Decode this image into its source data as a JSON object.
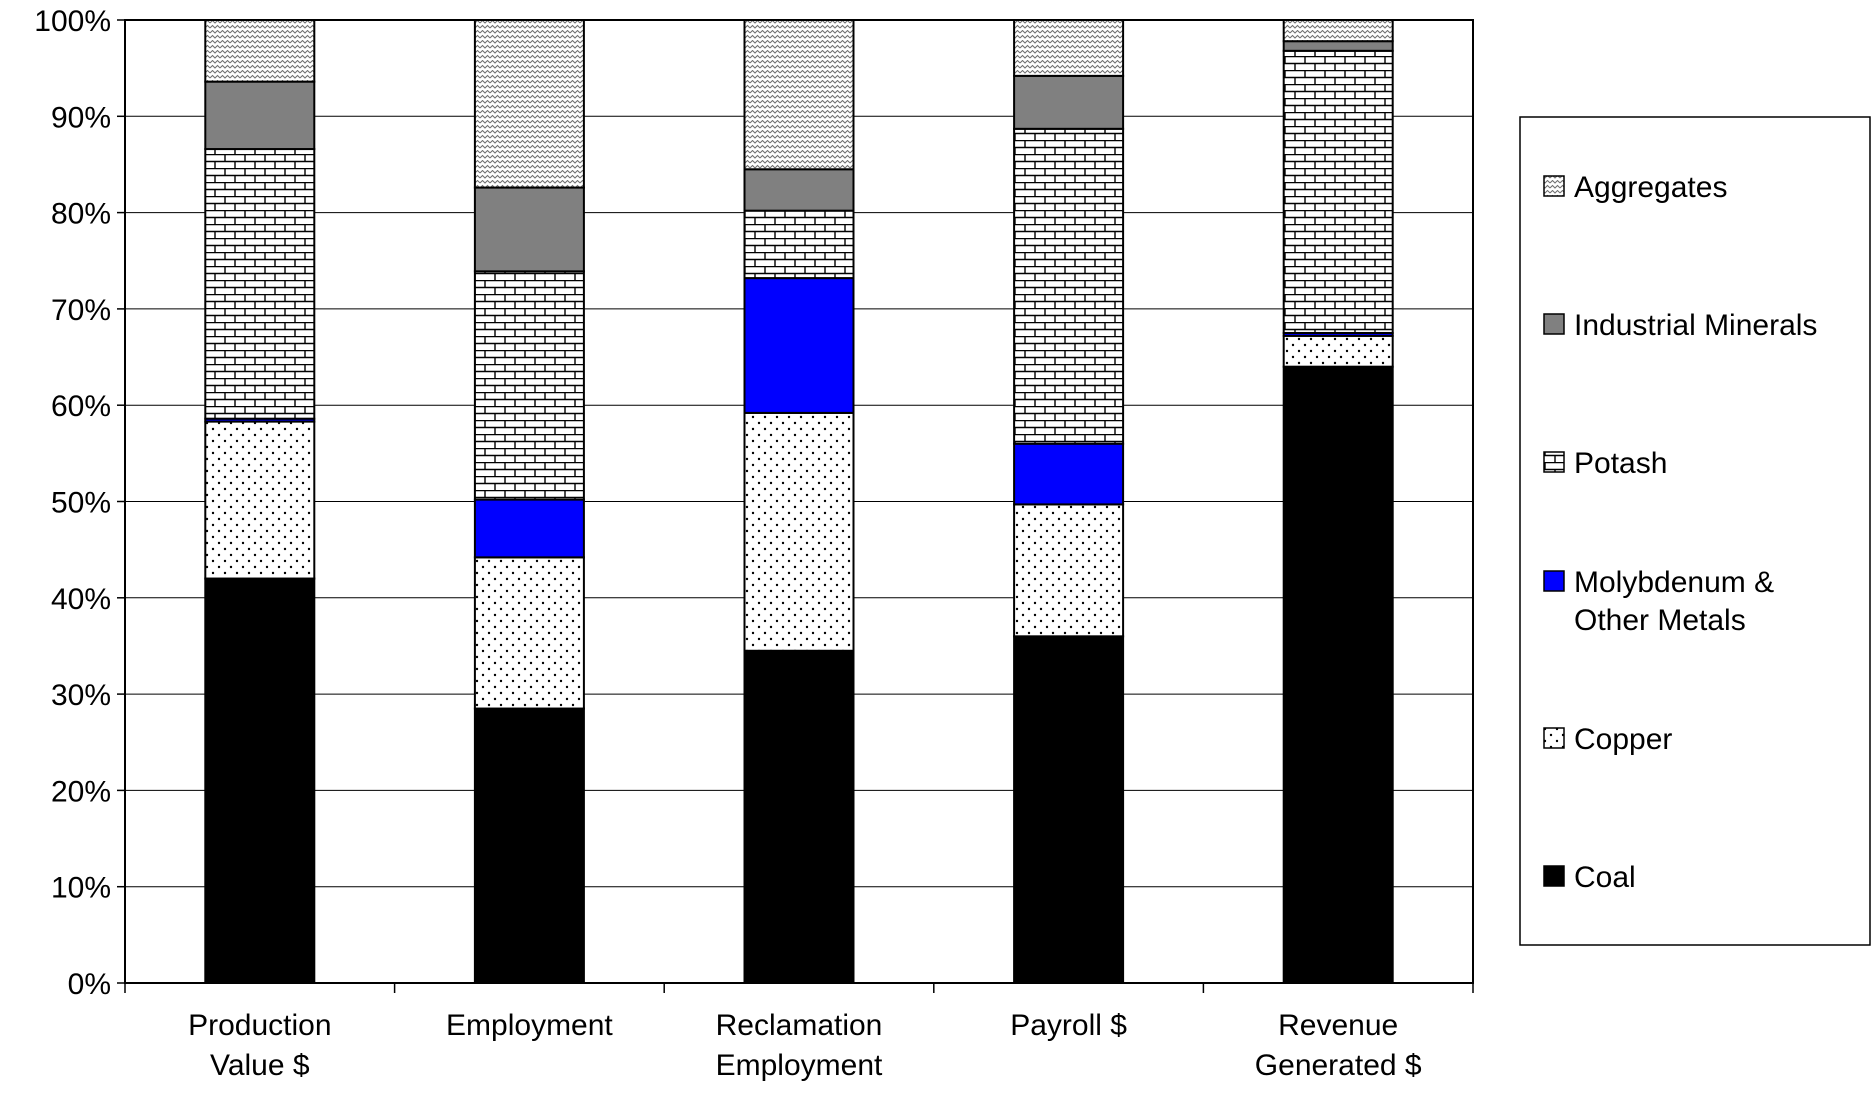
{
  "chart_data": {
    "type": "bar",
    "stacked": true,
    "title": "",
    "xlabel": "",
    "ylabel": "",
    "ylim": [
      0,
      100
    ],
    "y_ticks": [
      "0%",
      "10%",
      "20%",
      "30%",
      "40%",
      "50%",
      "60%",
      "70%",
      "80%",
      "90%",
      "100%"
    ],
    "grid": true,
    "legend_position": "right",
    "categories": [
      [
        "Production",
        "Value $"
      ],
      [
        "Employment"
      ],
      [
        "Reclamation",
        "Employment"
      ],
      [
        "Payroll $"
      ],
      [
        "Revenue",
        "Generated $"
      ]
    ],
    "series": [
      {
        "name": "Coal",
        "color": "#000000",
        "pattern": "solid",
        "values": [
          42,
          28.5,
          34.5,
          36,
          64
        ]
      },
      {
        "name": "Copper",
        "color": "#ffffff",
        "pattern": "dots",
        "values": [
          16.3,
          15.7,
          24.7,
          13.7,
          3.2
        ]
      },
      {
        "name": "Molybdenum & Other Metals",
        "color": "#0000ff",
        "pattern": "solid",
        "values": [
          0.3,
          6,
          14,
          6.3,
          0.3
        ]
      },
      {
        "name": "Potash",
        "color": "#ffffff",
        "pattern": "bricks",
        "values": [
          28,
          23.7,
          7,
          32.7,
          29.3
        ]
      },
      {
        "name": "Industrial Minerals",
        "color": "#808080",
        "pattern": "solid",
        "values": [
          7,
          8.7,
          4.3,
          5.5,
          1
        ]
      },
      {
        "name": "Aggregates",
        "color": "#ffffff",
        "pattern": "wave",
        "values": [
          6.4,
          17.4,
          15.5,
          5.8,
          2.2
        ]
      }
    ],
    "legend_order": [
      {
        "label": [
          "Aggregates"
        ],
        "series_index": 5
      },
      {
        "label": [
          "Industrial Minerals"
        ],
        "series_index": 4
      },
      {
        "label": [
          "Potash"
        ],
        "series_index": 3
      },
      {
        "label": [
          "Molybdenum &",
          "Other Metals"
        ],
        "series_index": 2
      },
      {
        "label": [
          "Copper"
        ],
        "series_index": 1
      },
      {
        "label": [
          "Coal"
        ],
        "series_index": 0
      }
    ]
  }
}
